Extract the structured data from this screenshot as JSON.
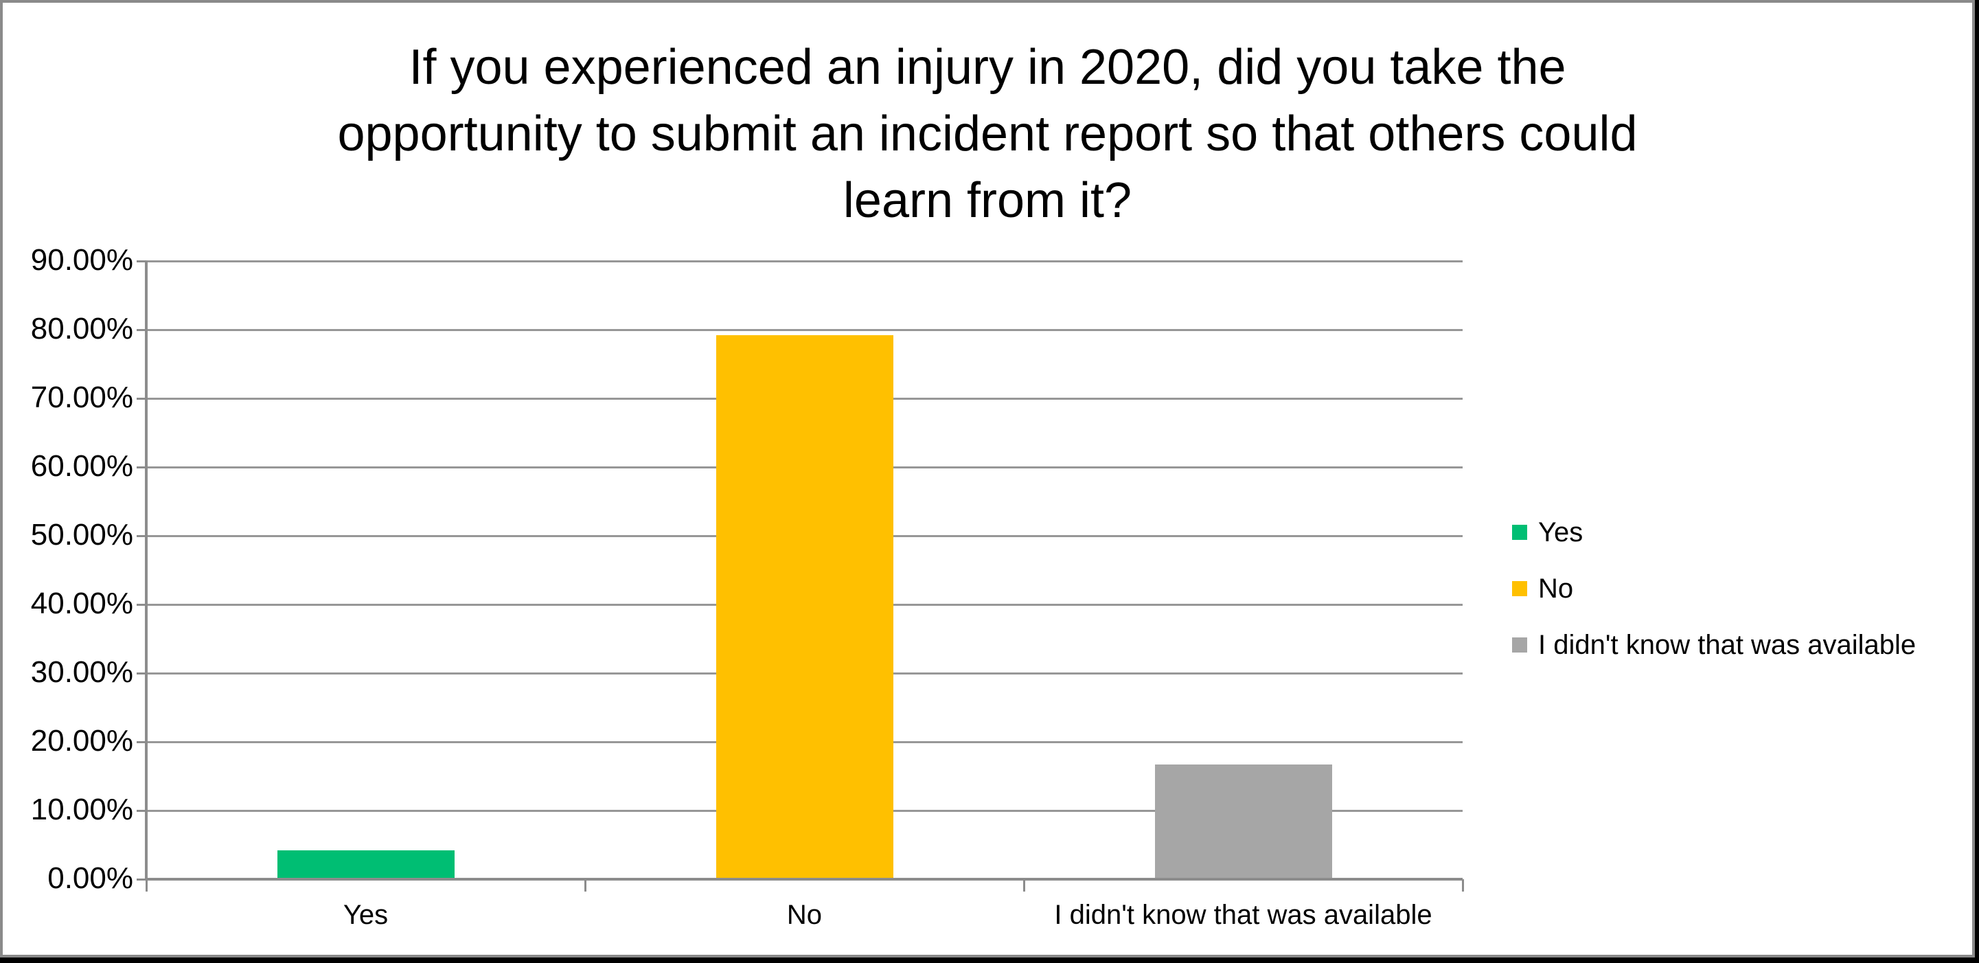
{
  "title_lines": [
    "If you experienced an injury in 2020, did you take the",
    "opportunity to submit an incident report so that others could",
    "learn from it?"
  ],
  "colors": {
    "yes_green": "#00BE73",
    "no_gold": "#FFC000",
    "dont_know_gray": "#A6A6A6",
    "gridline": "#979797",
    "axis": "#8C8C8C",
    "text": "#000000",
    "frame_border": "#8A8A8A",
    "canvas_black": "#000000",
    "chart_background": "#FFFFFF"
  },
  "chart_data": {
    "type": "bar",
    "title": "If you experienced an injury in 2020, did you take the opportunity to submit an incident report so that others could learn from it?",
    "categories": [
      "Yes",
      "No",
      "I didn't know that was available"
    ],
    "values": [
      4.17,
      79.17,
      16.67
    ],
    "bar_colors": [
      "#00BE73",
      "#FFC000",
      "#A6A6A6"
    ],
    "xlabel": "",
    "ylabel": "",
    "ylim": [
      0,
      90
    ],
    "ytick_step": 10,
    "ytick_labels": [
      "0.00%",
      "10.00%",
      "20.00%",
      "30.00%",
      "40.00%",
      "50.00%",
      "60.00%",
      "70.00%",
      "80.00%",
      "90.00%"
    ],
    "grid": true,
    "legend_position": "right",
    "legend": [
      {
        "label": "Yes",
        "color": "#00BE73"
      },
      {
        "label": "No",
        "color": "#FFC000"
      },
      {
        "label": "I didn't know that was available",
        "color": "#A6A6A6"
      }
    ]
  }
}
